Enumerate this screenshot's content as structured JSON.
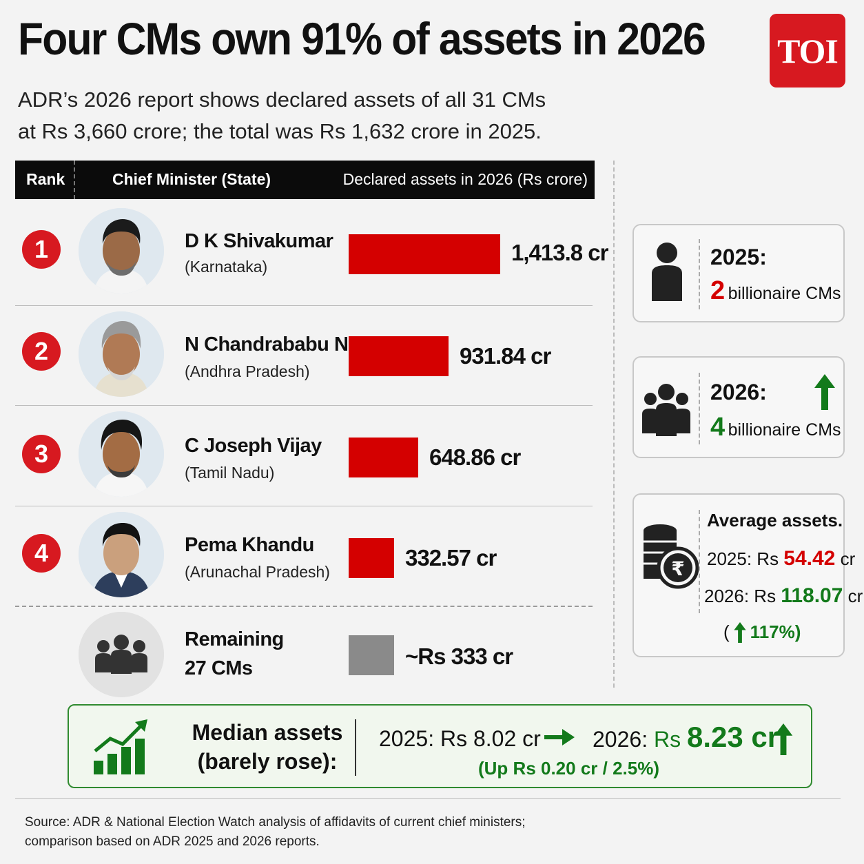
{
  "header": {
    "title": "Four CMs own 91% of assets in 2026",
    "subtitle_line1": "ADR’s 2026 report shows declared assets of all 31 CMs",
    "subtitle_line2": "at Rs 3,660 crore; the total was Rs 1,632 crore in 2025.",
    "logo_text": "TOI"
  },
  "table": {
    "col_rank": "Rank",
    "col_cm": "Chief Minister (State)",
    "col_value": "Declared assets in 2026 (Rs crore)"
  },
  "chart_data": {
    "type": "bar",
    "title": "Four CMs own 91% of assets in 2026",
    "xlabel": "",
    "ylabel": "Declared assets in 2026 (Rs crore)",
    "categories": [
      "D K Shivakumar",
      "N Chandrabadu Naidu",
      "C Joseph Vijay",
      "Pema Khandu",
      "Remaining 27 CMs"
    ],
    "values": [
      1413.8,
      931.84,
      648.86,
      332.57,
      333
    ],
    "bar_colors": [
      "#d40000",
      "#d40000",
      "#d40000",
      "#d40000",
      "#8a8a8a"
    ]
  },
  "rows": [
    {
      "rank": "1",
      "name": "D K Shivakumar",
      "state": "(Karnataka)",
      "value_label": "1,413.8 cr"
    },
    {
      "rank": "2",
      "name": "N Chandrababu Naidu",
      "state": "(Andhra Pradesh)",
      "value_label": "931.84 cr"
    },
    {
      "rank": "3",
      "name": "C Joseph Vijay",
      "state": "(Tamil Nadu)",
      "value_label": "648.86 cr"
    },
    {
      "rank": "4",
      "name": "Pema Khandu",
      "state": "(Arunachal Pradesh)",
      "value_label": "332.57 cr"
    }
  ],
  "remaining": {
    "line1": "Remaining",
    "line2": "27 CMs",
    "value_label": "~Rs 333 cr"
  },
  "cards": {
    "c2025": {
      "year": "2025:",
      "count": "2",
      "label": "billionaire CMs"
    },
    "c2026": {
      "year": "2026:",
      "count": "4",
      "label": "billionaire CMs"
    },
    "avg": {
      "title": "Average assets.",
      "y2025_prefix": "2025: Rs ",
      "y2025_value": "54.42",
      "y2025_suffix": " cr",
      "y2026_prefix": "2026: Rs ",
      "y2026_value": "118.07",
      "y2026_suffix": " cr",
      "change_open": "(",
      "change_value": "117%)"
    }
  },
  "median": {
    "title_line1": "Median assets",
    "title_line2": "(barely rose):",
    "y2025": "2025: Rs 8.02 cr",
    "y2026_label": "2026:",
    "y2026_value": "Rs 8.23 cr",
    "y2026_value_prefix": "Rs ",
    "y2026_value_num": "8.23 cr",
    "change": "(Up Rs 0.20 cr / 2.5%)"
  },
  "source": {
    "line1": "Source: ADR & National Election Watch analysis of affidavits of current chief ministers;",
    "line2": "comparison based on ADR 2025 and 2026 reports."
  },
  "colors": {
    "accent_red": "#d71920",
    "bar_red": "#d40000",
    "green": "#137a1b",
    "grey_bar": "#8a8a8a"
  }
}
